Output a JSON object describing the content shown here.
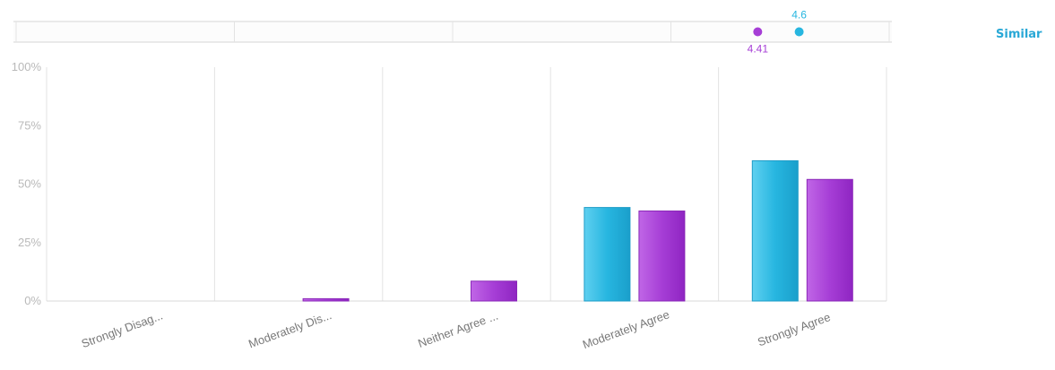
{
  "similar_label": "Similar",
  "colors": {
    "series_a": "#27b6e0",
    "series_b": "#a63ed6",
    "grid": "#e3e3e3",
    "tick_text": "#b9b9b9",
    "category_text": "#777777"
  },
  "chart_data": [
    {
      "type": "dot",
      "title": "",
      "x_range": [
        1,
        5
      ],
      "points": [
        {
          "series": "series_b",
          "value": 4.41,
          "label": "4.41",
          "label_position": "below"
        },
        {
          "series": "series_a",
          "value": 4.6,
          "label": "4.6",
          "label_position": "above"
        }
      ],
      "grid": true
    },
    {
      "type": "bar",
      "title": "",
      "xlabel": "",
      "ylabel": "",
      "categories": [
        "Strongly Disag...",
        "Moderately Dis...",
        "Neither Agree ...",
        "Moderately Agree",
        "Strongly Agree"
      ],
      "series": [
        {
          "key": "series_a",
          "values": [
            0,
            0,
            0,
            40,
            60
          ]
        },
        {
          "key": "series_b",
          "values": [
            0,
            1,
            8.5,
            38.5,
            52
          ]
        }
      ],
      "ylim": [
        0,
        100
      ],
      "yticks": [
        0,
        25,
        50,
        75,
        100
      ],
      "ytick_labels": [
        "0%",
        "25%",
        "50%",
        "75%",
        "100%"
      ],
      "grid": true,
      "legend": "none"
    }
  ]
}
